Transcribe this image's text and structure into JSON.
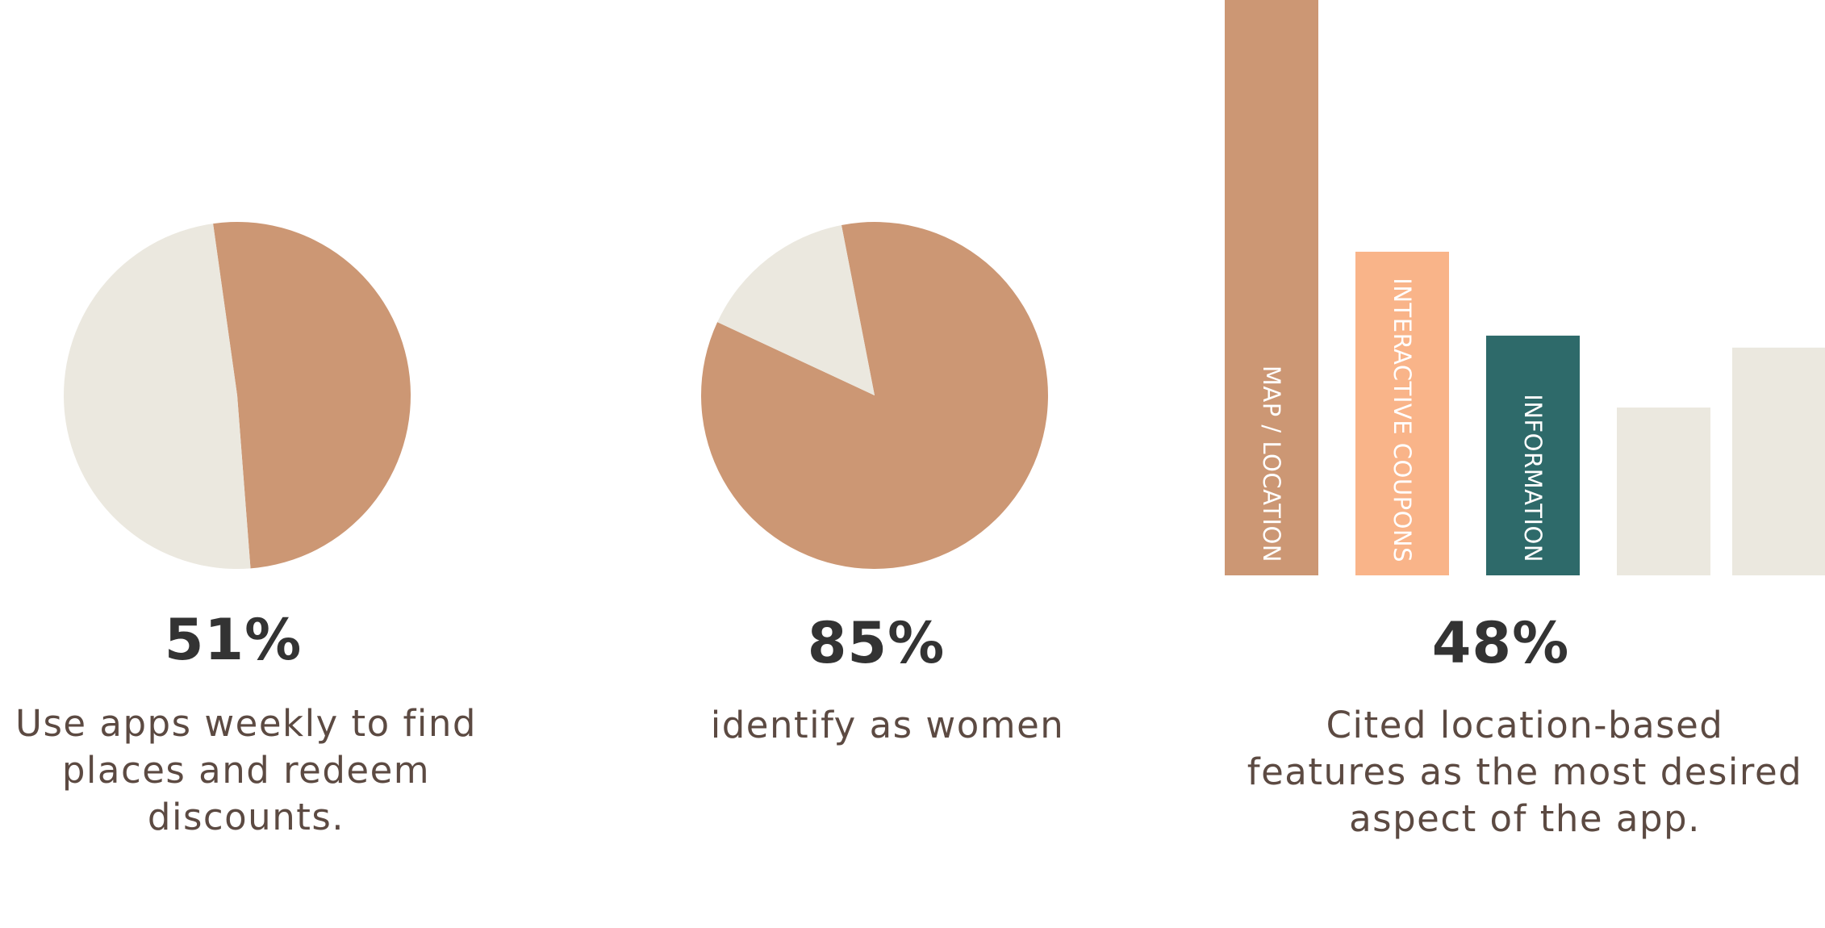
{
  "colors": {
    "primary": "#cc9774",
    "light": "#ebe8df",
    "peach": "#f9b489",
    "teal": "#2e6a6a",
    "bar_label": "#ffffff",
    "value_text": "#333333",
    "caption_text": "#5c4a42"
  },
  "stats": [
    {
      "value": "51%",
      "caption": "Use apps weekly to find places and redeem discounts."
    },
    {
      "value": "85%",
      "caption": "identify as women"
    },
    {
      "value": "48%",
      "caption": "Cited location-based features as the most desired aspect of the app."
    }
  ],
  "chart_data": [
    {
      "type": "pie",
      "slices": [
        {
          "value": 51,
          "color": "#cc9774"
        },
        {
          "value": 49,
          "color": "#ebe8df"
        }
      ]
    },
    {
      "type": "pie",
      "slices": [
        {
          "value": 85,
          "color": "#cc9774"
        },
        {
          "value": 15,
          "color": "#ebe8df"
        }
      ]
    },
    {
      "type": "bar",
      "categories": [
        "MAP / LOCATION",
        "INTERACTIVE COUPONS",
        "INFORMATION",
        "",
        ""
      ],
      "values": [
        48,
        27,
        20,
        14,
        19
      ],
      "colors": [
        "#cc9774",
        "#f9b489",
        "#2e6a6a",
        "#ebe8df",
        "#ebe8df"
      ],
      "ylim": [
        0,
        48
      ]
    }
  ]
}
